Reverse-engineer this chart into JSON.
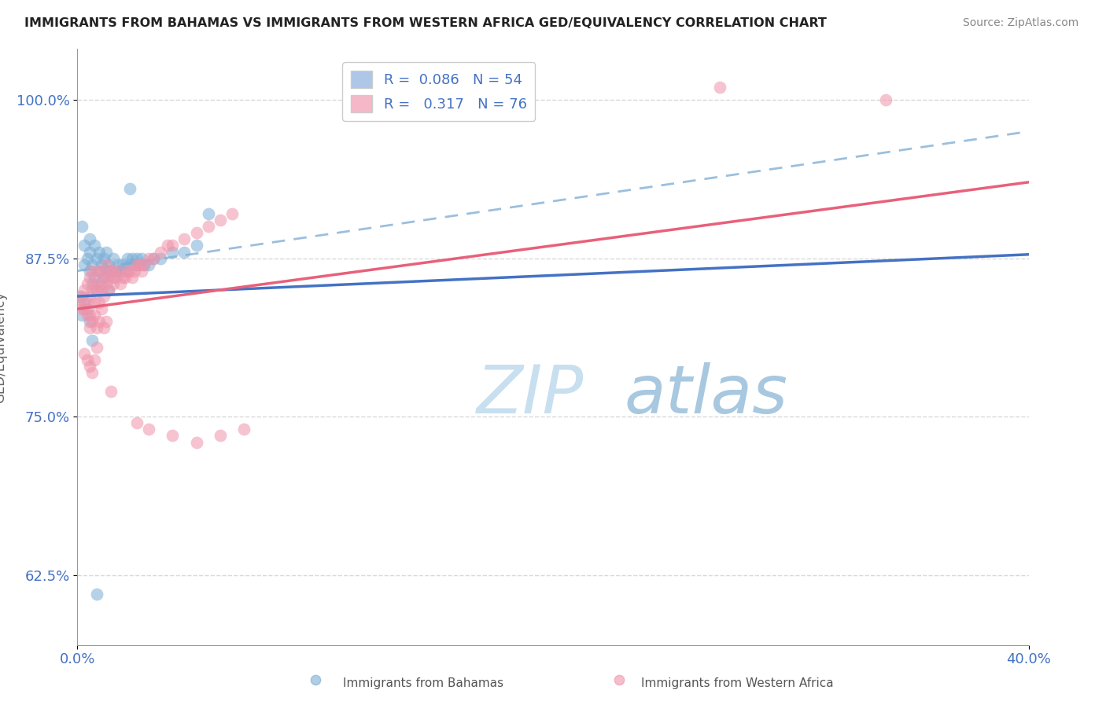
{
  "title": "IMMIGRANTS FROM BAHAMAS VS IMMIGRANTS FROM WESTERN AFRICA GED/EQUIVALENCY CORRELATION CHART",
  "source": "Source: ZipAtlas.com",
  "ylabel": "GED/Equivalency",
  "xlim": [
    0.0,
    40.0
  ],
  "ylim": [
    57.0,
    104.0
  ],
  "yticks": [
    62.5,
    75.0,
    87.5,
    100.0
  ],
  "xtick_labels": [
    "0.0%",
    "40.0%"
  ],
  "xtick_vals": [
    0.0,
    40.0
  ],
  "legend1_label": "R =  0.086   N = 54",
  "legend2_label": "R =   0.317   N = 76",
  "legend1_color": "#aec6e8",
  "legend2_color": "#f4b8c8",
  "scatter1_color": "#7aaed6",
  "scatter2_color": "#f093aa",
  "line1_color": "#4472c4",
  "line2_color": "#e8607a",
  "dashed_color": "#8ab4d8",
  "watermark_text": "ZIPatlas",
  "watermark_color": "#cce4f0",
  "title_color": "#222222",
  "source_color": "#888888",
  "axis_color": "#999999",
  "grid_color": "#d8d8d8",
  "tick_label_color": "#4472c4",
  "ylabel_color": "#666666",
  "bottom_label_color": "#555555",
  "blue_line_x0": 0.0,
  "blue_line_y0": 84.5,
  "blue_line_x1": 40.0,
  "blue_line_y1": 87.8,
  "pink_line_x0": 0.0,
  "pink_line_y0": 83.5,
  "pink_line_x1": 40.0,
  "pink_line_y1": 93.5,
  "dash_line_x0": 0.0,
  "dash_line_y0": 86.5,
  "dash_line_x1": 40.0,
  "dash_line_y1": 97.5,
  "bahamas_x": [
    0.2,
    0.3,
    0.3,
    0.4,
    0.5,
    0.5,
    0.5,
    0.6,
    0.6,
    0.7,
    0.7,
    0.8,
    0.8,
    0.9,
    0.9,
    1.0,
    1.0,
    1.1,
    1.1,
    1.2,
    1.2,
    1.3,
    1.3,
    1.4,
    1.5,
    1.5,
    1.6,
    1.7,
    1.8,
    1.9,
    2.0,
    2.1,
    2.2,
    2.3,
    2.4,
    2.5,
    2.6,
    2.7,
    2.8,
    3.0,
    3.2,
    3.5,
    4.0,
    4.5,
    5.0,
    0.1,
    0.2,
    0.3,
    0.4,
    0.5,
    0.6,
    2.2,
    5.5,
    0.8
  ],
  "bahamas_y": [
    90.0,
    88.5,
    87.0,
    87.5,
    88.0,
    86.5,
    89.0,
    85.5,
    87.0,
    86.0,
    88.5,
    85.0,
    87.5,
    86.5,
    88.0,
    87.0,
    85.5,
    86.0,
    87.5,
    86.5,
    88.0,
    85.0,
    87.0,
    86.5,
    86.0,
    87.5,
    86.5,
    87.0,
    86.5,
    87.0,
    86.5,
    87.5,
    87.0,
    87.5,
    87.0,
    87.5,
    87.0,
    87.5,
    87.0,
    87.0,
    87.5,
    87.5,
    88.0,
    88.0,
    88.5,
    84.5,
    83.0,
    84.0,
    83.5,
    82.5,
    81.0,
    93.0,
    91.0,
    61.0
  ],
  "westafrica_x": [
    0.1,
    0.2,
    0.2,
    0.3,
    0.3,
    0.4,
    0.4,
    0.5,
    0.5,
    0.5,
    0.6,
    0.6,
    0.7,
    0.7,
    0.8,
    0.8,
    0.9,
    0.9,
    1.0,
    1.0,
    1.1,
    1.1,
    1.2,
    1.2,
    1.3,
    1.3,
    1.4,
    1.5,
    1.5,
    1.6,
    1.7,
    1.8,
    1.9,
    2.0,
    2.1,
    2.2,
    2.3,
    2.4,
    2.5,
    2.6,
    2.7,
    2.8,
    3.0,
    3.2,
    3.5,
    3.8,
    4.0,
    4.5,
    5.0,
    5.5,
    6.0,
    6.5,
    0.4,
    0.5,
    0.6,
    0.7,
    0.8,
    0.9,
    1.0,
    1.1,
    1.2,
    27.0,
    34.0,
    0.3,
    0.4,
    0.5,
    0.6,
    0.7,
    0.8,
    1.4,
    2.5,
    3.0,
    4.0,
    5.0,
    6.0,
    7.0
  ],
  "westafrica_y": [
    84.0,
    84.5,
    83.5,
    83.5,
    85.0,
    84.0,
    85.5,
    84.5,
    86.0,
    83.0,
    85.0,
    86.5,
    85.5,
    84.0,
    85.0,
    86.5,
    85.5,
    84.0,
    85.0,
    86.5,
    84.5,
    86.0,
    85.5,
    87.0,
    86.0,
    85.0,
    86.5,
    86.5,
    85.5,
    86.0,
    86.5,
    85.5,
    86.0,
    86.0,
    86.5,
    86.5,
    86.0,
    86.5,
    87.0,
    87.0,
    86.5,
    87.0,
    87.5,
    87.5,
    88.0,
    88.5,
    88.5,
    89.0,
    89.5,
    90.0,
    90.5,
    91.0,
    83.0,
    82.0,
    82.5,
    83.0,
    82.0,
    82.5,
    83.5,
    82.0,
    82.5,
    101.0,
    100.0,
    80.0,
    79.5,
    79.0,
    78.5,
    79.5,
    80.5,
    77.0,
    74.5,
    74.0,
    73.5,
    73.0,
    73.5,
    74.0
  ]
}
